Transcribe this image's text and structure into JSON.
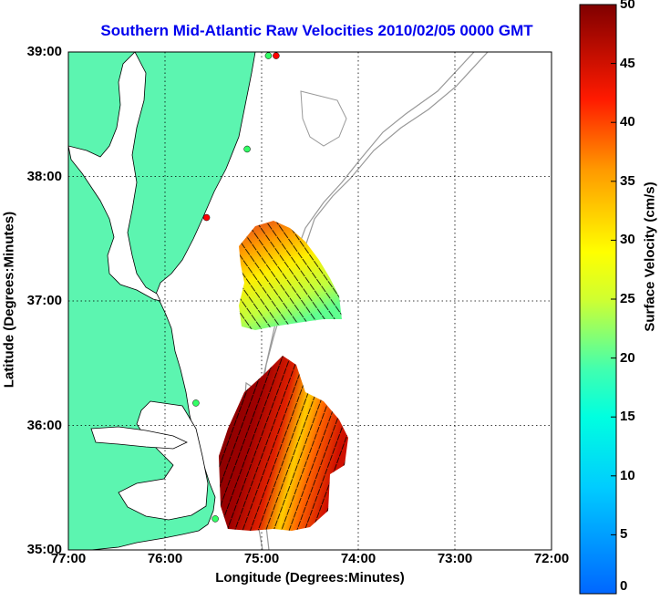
{
  "title": "Southern Mid-Atlantic Raw Velocities 2010/02/05 0000 GMT",
  "x_axis": {
    "label": "Longitude (Degrees:Minutes)",
    "ticks": [
      "77:00",
      "76:00",
      "75:00",
      "74:00",
      "73:00",
      "72:00"
    ],
    "range_deg_west": [
      77,
      72
    ]
  },
  "y_axis": {
    "label": "Latitude (Degrees:Minutes)",
    "ticks": [
      "39:00",
      "38:00",
      "37:00",
      "36:00",
      "35:00"
    ],
    "range_deg_north": [
      35,
      39
    ]
  },
  "colorbar": {
    "label": "Surface Velocity (cm/s)",
    "ticks": [
      "50",
      "45",
      "40",
      "35",
      "30",
      "25",
      "20",
      "15",
      "10",
      "5",
      "0"
    ],
    "range": [
      0,
      50
    ],
    "colormap": "jet",
    "colors": {
      "low": "#0066ff",
      "mid": "#00ffc0",
      "mid_high": "#ffff00",
      "high": "#ff0000",
      "max": "#800000"
    }
  },
  "map": {
    "grid": "dotted",
    "land_color": "#5cf5b0",
    "water_color": "#ffffff",
    "coastline_color": "#000000",
    "bathymetry_color": "#999999"
  },
  "stations": [
    {
      "lon": 74.85,
      "lat": 38.97,
      "color": "#ff0000"
    },
    {
      "lon": 74.93,
      "lat": 38.97,
      "color": "#33ff66"
    },
    {
      "lon": 75.15,
      "lat": 38.22,
      "color": "#33ff66"
    },
    {
      "lon": 75.57,
      "lat": 37.67,
      "color": "#ff0000"
    },
    {
      "lon": 75.68,
      "lat": 36.18,
      "color": "#33ff66"
    },
    {
      "lon": 75.48,
      "lat": 35.25,
      "color": "#33ff66"
    }
  ]
}
